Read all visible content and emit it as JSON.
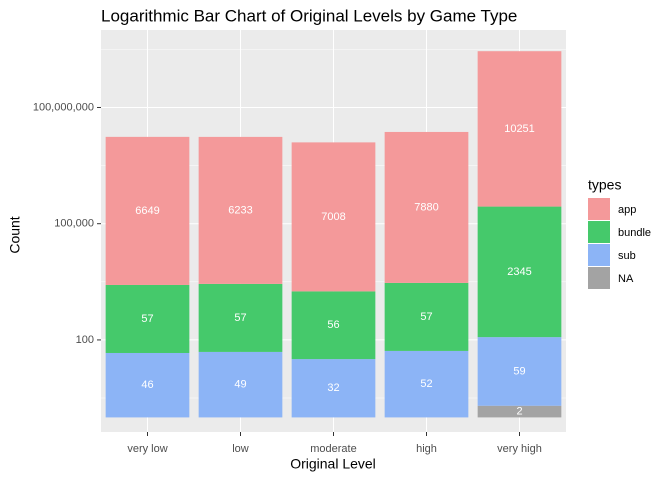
{
  "chart_data": {
    "type": "bar",
    "stacked": true,
    "log_scale": true,
    "title": "Logarithmic Bar Chart of Original Levels by Game Type",
    "x_label": "Original Level",
    "y_label": "Count",
    "categories": [
      "very low",
      "low",
      "moderate",
      "high",
      "very high"
    ],
    "series": [
      {
        "name": "app",
        "color": "#f4999a",
        "values": [
          6649,
          6233,
          7008,
          7880,
          10251
        ]
      },
      {
        "name": "bundle",
        "color": "#45c96b",
        "values": [
          57,
          57,
          56,
          57,
          2345
        ]
      },
      {
        "name": "sub",
        "color": "#8cb4f6",
        "values": [
          46,
          49,
          32,
          52,
          59
        ]
      },
      {
        "name": "NA",
        "color": "#a3a3a3",
        "values": [
          null,
          null,
          null,
          null,
          2
        ]
      }
    ],
    "ylim": [
      0.42,
      10000000000
    ],
    "yticks": [
      100,
      {
        "value": 100000,
        "label": "100,000"
      },
      {
        "value": 100000000,
        "label": "100,000,000"
      }
    ],
    "grid": true,
    "legend_title": "types",
    "legend_position": "right"
  }
}
